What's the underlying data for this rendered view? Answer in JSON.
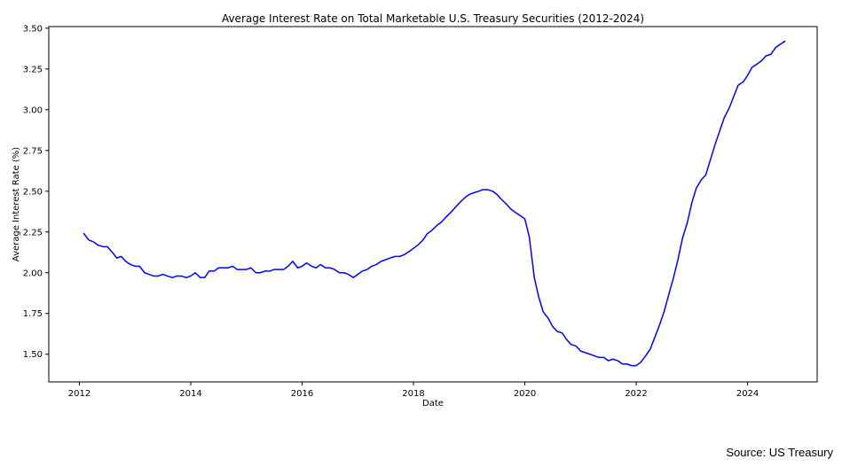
{
  "chart_data": {
    "type": "line",
    "title": "Average Interest Rate on Total Marketable U.S. Treasury Securities (2012-2024)",
    "xlabel": "Date",
    "ylabel": "Average Interest Rate (%)",
    "xlim": [
      2011.45,
      2025.25
    ],
    "ylim": [
      1.33,
      3.51
    ],
    "x_ticks": [
      2012,
      2014,
      2016,
      2018,
      2020,
      2022,
      2024
    ],
    "y_ticks": [
      1.5,
      1.75,
      2.0,
      2.25,
      2.5,
      2.75,
      3.0,
      3.25,
      3.5
    ],
    "y_tick_labels": [
      "1.50",
      "1.75",
      "2.00",
      "2.25",
      "2.50",
      "2.75",
      "3.00",
      "3.25",
      "3.50"
    ],
    "grid": false,
    "color": "#0000ff",
    "series": [
      {
        "x": [
          2012.08,
          2012.17,
          2012.25,
          2012.33,
          2012.42,
          2012.5,
          2012.58,
          2012.67,
          2012.75,
          2012.83,
          2012.92,
          2013.0,
          2013.08,
          2013.17,
          2013.25,
          2013.33,
          2013.42,
          2013.5,
          2013.58,
          2013.67,
          2013.75,
          2013.83,
          2013.92,
          2014.0,
          2014.08,
          2014.17,
          2014.25,
          2014.33,
          2014.42,
          2014.5,
          2014.58,
          2014.67,
          2014.75,
          2014.83,
          2014.92,
          2015.0,
          2015.08,
          2015.17,
          2015.25,
          2015.33,
          2015.42,
          2015.5,
          2015.58,
          2015.67,
          2015.75,
          2015.83,
          2015.92,
          2016.0,
          2016.08,
          2016.17,
          2016.25,
          2016.33,
          2016.42,
          2016.5,
          2016.58,
          2016.67,
          2016.75,
          2016.83,
          2016.92,
          2017.0,
          2017.08,
          2017.17,
          2017.25,
          2017.33,
          2017.42,
          2017.5,
          2017.58,
          2017.67,
          2017.75,
          2017.83,
          2017.92,
          2018.0,
          2018.08,
          2018.17,
          2018.25,
          2018.33,
          2018.42,
          2018.5,
          2018.58,
          2018.67,
          2018.75,
          2018.83,
          2018.92,
          2019.0,
          2019.08,
          2019.17,
          2019.25,
          2019.33,
          2019.42,
          2019.5,
          2019.58,
          2019.67,
          2019.75,
          2019.83,
          2019.92,
          2020.0,
          2020.08,
          2020.17,
          2020.25,
          2020.33,
          2020.42,
          2020.5,
          2020.58,
          2020.67,
          2020.75,
          2020.83,
          2020.92,
          2021.0,
          2021.08,
          2021.17,
          2021.25,
          2021.33,
          2021.42,
          2021.5,
          2021.58,
          2021.67,
          2021.75,
          2021.83,
          2021.92,
          2022.0,
          2022.08,
          2022.17,
          2022.25,
          2022.33,
          2022.42,
          2022.5,
          2022.58,
          2022.67,
          2022.75,
          2022.83,
          2022.92,
          2023.0,
          2023.08,
          2023.17,
          2023.25,
          2023.33,
          2023.42,
          2023.5,
          2023.58,
          2023.67,
          2023.75,
          2023.83,
          2023.92,
          2024.0,
          2024.08,
          2024.17,
          2024.25,
          2024.33,
          2024.42,
          2024.5,
          2024.58,
          2024.67
        ],
        "values": [
          2.24,
          2.2,
          2.19,
          2.17,
          2.16,
          2.16,
          2.13,
          2.09,
          2.1,
          2.07,
          2.05,
          2.04,
          2.04,
          2.0,
          1.99,
          1.98,
          1.98,
          1.99,
          1.98,
          1.97,
          1.98,
          1.98,
          1.97,
          1.98,
          2.0,
          1.97,
          1.97,
          2.01,
          2.01,
          2.03,
          2.03,
          2.03,
          2.04,
          2.02,
          2.02,
          2.02,
          2.03,
          2.0,
          2.0,
          2.01,
          2.01,
          2.02,
          2.02,
          2.02,
          2.04,
          2.07,
          2.03,
          2.04,
          2.06,
          2.04,
          2.03,
          2.05,
          2.03,
          2.03,
          2.02,
          2.0,
          2.0,
          1.99,
          1.97,
          1.99,
          2.01,
          2.02,
          2.04,
          2.05,
          2.07,
          2.08,
          2.09,
          2.1,
          2.1,
          2.11,
          2.13,
          2.15,
          2.17,
          2.2,
          2.24,
          2.26,
          2.29,
          2.31,
          2.34,
          2.37,
          2.4,
          2.43,
          2.46,
          2.48,
          2.49,
          2.5,
          2.51,
          2.51,
          2.5,
          2.48,
          2.45,
          2.42,
          2.39,
          2.37,
          2.35,
          2.33,
          2.22,
          1.97,
          1.85,
          1.76,
          1.72,
          1.67,
          1.64,
          1.63,
          1.59,
          1.56,
          1.55,
          1.52,
          1.51,
          1.5,
          1.49,
          1.48,
          1.48,
          1.46,
          1.47,
          1.46,
          1.44,
          1.44,
          1.43,
          1.43,
          1.45,
          1.49,
          1.53,
          1.6,
          1.68,
          1.76,
          1.86,
          1.97,
          2.08,
          2.21,
          2.31,
          2.43,
          2.52,
          2.57,
          2.6,
          2.69,
          2.79,
          2.87,
          2.95,
          3.01,
          3.08,
          3.15,
          3.17,
          3.21,
          3.26,
          3.28,
          3.3,
          3.33,
          3.34,
          3.38,
          3.4,
          3.42
        ]
      }
    ]
  },
  "footer": {
    "source": "Source: US Treasury"
  }
}
